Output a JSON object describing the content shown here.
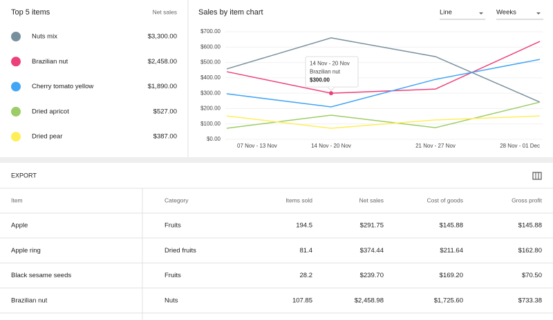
{
  "top_items": {
    "title": "Top 5 items",
    "column": "Net sales",
    "values": [
      "$3,300.00",
      "$2,458.00",
      "$1,890.00",
      "$527.00",
      "$387.00"
    ]
  },
  "chart_data": {
    "type": "line",
    "title": "Sales by item chart",
    "controls": [
      "Line",
      "Weeks"
    ],
    "categories": [
      "07 Nov - 13 Nov",
      "14 Nov - 20 Nov",
      "21 Nov - 27 Nov",
      "28 Nov - 01 Dec"
    ],
    "series": [
      {
        "name": "Nuts mix",
        "color": "#78909c",
        "values": [
          458,
          660,
          538,
          242
        ]
      },
      {
        "name": "Brazilian nut",
        "color": "#ec407a",
        "values": [
          440,
          300,
          327,
          637
        ],
        "value_labels": [
          null,
          "$300.00",
          null,
          null
        ]
      },
      {
        "name": "Cherry tomato yellow",
        "color": "#42a5f5",
        "values": [
          296,
          211,
          390,
          520
        ]
      },
      {
        "name": "Dried apricot",
        "color": "#9ccc65",
        "values": [
          72,
          157,
          76,
          242
        ]
      },
      {
        "name": "Dried pear",
        "color": "#ffee58",
        "values": [
          152,
          72,
          126,
          152
        ]
      }
    ],
    "ylim": [
      0,
      700
    ],
    "yticks": [
      {
        "value": 0,
        "label": "$0.00"
      },
      {
        "value": 100,
        "label": "$100.00"
      },
      {
        "value": 200,
        "label": "$200.00"
      },
      {
        "value": 300,
        "label": "$300.00"
      },
      {
        "value": 400,
        "label": "$400.00"
      },
      {
        "value": 500,
        "label": "$500.00"
      },
      {
        "value": 600,
        "label": "$600.00"
      },
      {
        "value": 700,
        "label": "$700.00"
      }
    ],
    "grid": true
  },
  "export": {
    "title": "EXPORT",
    "columns": [
      "Item",
      "Category",
      "Items sold",
      "Net sales",
      "Cost of goods",
      "Gross profit"
    ],
    "rows": [
      [
        "Apple",
        "Fruits",
        "194.5",
        "$291.75",
        "$145.88",
        "$145.88"
      ],
      [
        "Apple ring",
        "Dried fruits",
        "81.4",
        "$374.44",
        "$211.64",
        "$162.80"
      ],
      [
        "Black sesame seeds",
        "Fruits",
        "28.2",
        "$239.70",
        "$169.20",
        "$70.50"
      ],
      [
        "Brazilian nut",
        "Nuts",
        "107.85",
        "$2,458.98",
        "$1,725.60",
        "$733.38"
      ]
    ]
  }
}
